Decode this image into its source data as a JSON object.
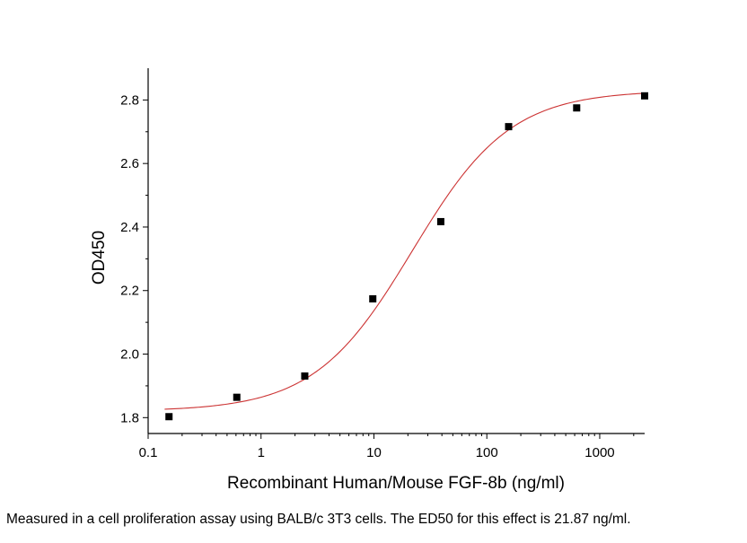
{
  "chart_data": {
    "type": "scatter",
    "title": "",
    "xlabel": "Recombinant Human/Mouse FGF-8b (ng/ml)",
    "ylabel": "OD450",
    "x_scale": "log",
    "xlim": [
      0.1,
      2500
    ],
    "ylim": [
      1.75,
      2.9
    ],
    "x_ticks": [
      0.1,
      1,
      10,
      100,
      1000
    ],
    "x_tick_labels": [
      "0.1",
      "1",
      "10",
      "100",
      "1000"
    ],
    "y_ticks": [
      1.8,
      2.0,
      2.2,
      2.4,
      2.6,
      2.8
    ],
    "y_tick_labels": [
      "1.8",
      "2.0",
      "2.2",
      "2.4",
      "2.6",
      "2.8"
    ],
    "grid": false,
    "legend": "none",
    "series": [
      {
        "marker": "square",
        "color": "#000000",
        "points": [
          {
            "x": 0.153,
            "y": 1.803
          },
          {
            "x": 0.61,
            "y": 1.864
          },
          {
            "x": 2.44,
            "y": 1.931
          },
          {
            "x": 9.77,
            "y": 2.174
          },
          {
            "x": 39.1,
            "y": 2.417
          },
          {
            "x": 156,
            "y": 2.716
          },
          {
            "x": 625,
            "y": 2.775
          },
          {
            "x": 2500,
            "y": 2.813
          }
        ]
      }
    ],
    "fit_curve": {
      "model": "4PL",
      "color": "#cc3333",
      "bottom": 1.82,
      "top": 2.83,
      "ec50": 21.87,
      "hill": 1.0
    }
  },
  "caption": "Measured in a cell proliferation assay using BALB/c 3T3 cells. The ED50 for this effect is 21.87 ng/ml."
}
